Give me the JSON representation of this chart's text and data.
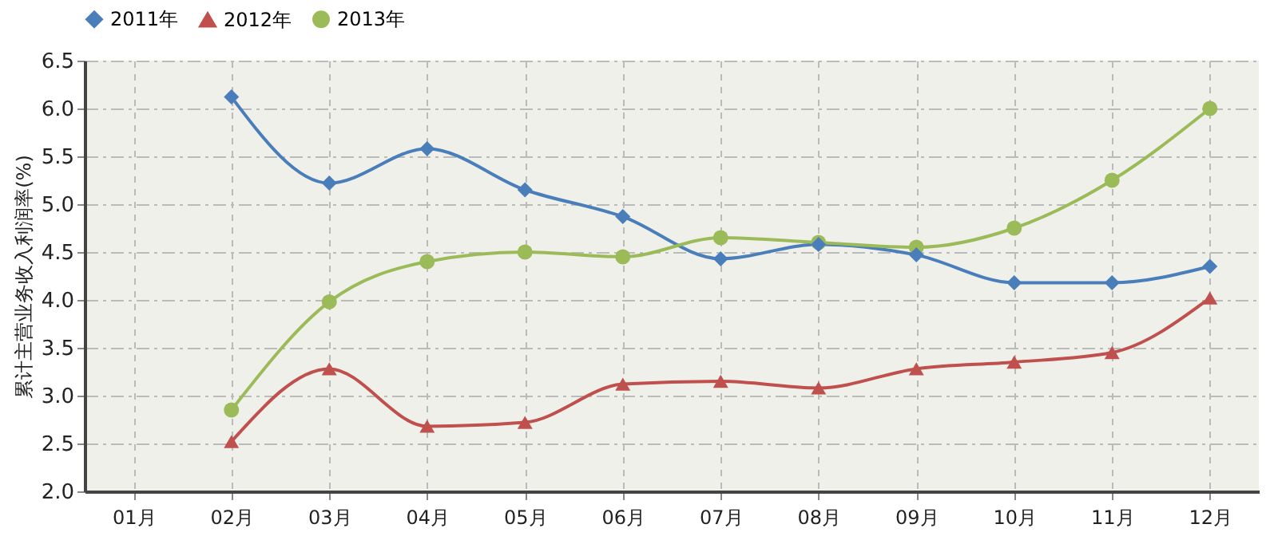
{
  "chart_data": {
    "type": "line",
    "ylabel": "累计主营业务收入利润率(%)",
    "categories": [
      "01月",
      "02月",
      "03月",
      "04月",
      "05月",
      "06月",
      "07月",
      "08月",
      "09月",
      "10月",
      "11月",
      "12月"
    ],
    "series": [
      {
        "name": "2011年",
        "color": "#4a7ebb",
        "marker": "diamond",
        "values": [
          null,
          6.12,
          5.22,
          5.58,
          5.15,
          4.87,
          4.43,
          4.58,
          4.47,
          4.18,
          4.18,
          4.35
        ]
      },
      {
        "name": "2012年",
        "color": "#c0504d",
        "marker": "triangle",
        "values": [
          null,
          2.52,
          3.28,
          2.68,
          2.72,
          3.12,
          3.15,
          3.08,
          3.28,
          3.35,
          3.45,
          4.02
        ]
      },
      {
        "name": "2013年",
        "color": "#9bbb59",
        "marker": "circle",
        "values": [
          null,
          2.85,
          3.98,
          4.4,
          4.5,
          4.45,
          4.65,
          4.6,
          4.55,
          4.75,
          5.25,
          6.0
        ]
      }
    ],
    "ylim": [
      2.0,
      6.5
    ],
    "yticks": [
      {
        "value": 2.0,
        "label": "2.0"
      },
      {
        "value": 2.5,
        "label": "2.5"
      },
      {
        "value": 3.0,
        "label": "3.0"
      },
      {
        "value": 3.5,
        "label": "3.5"
      },
      {
        "value": 4.0,
        "label": "4.0"
      },
      {
        "value": 4.5,
        "label": "4.5"
      },
      {
        "value": 5.0,
        "label": "5.0"
      },
      {
        "value": 5.5,
        "label": "5.5"
      },
      {
        "value": 6.0,
        "label": "6.0"
      },
      {
        "value": 6.5,
        "label": "6.5"
      }
    ],
    "grid": true,
    "legend": "top",
    "line_style": "solid"
  }
}
